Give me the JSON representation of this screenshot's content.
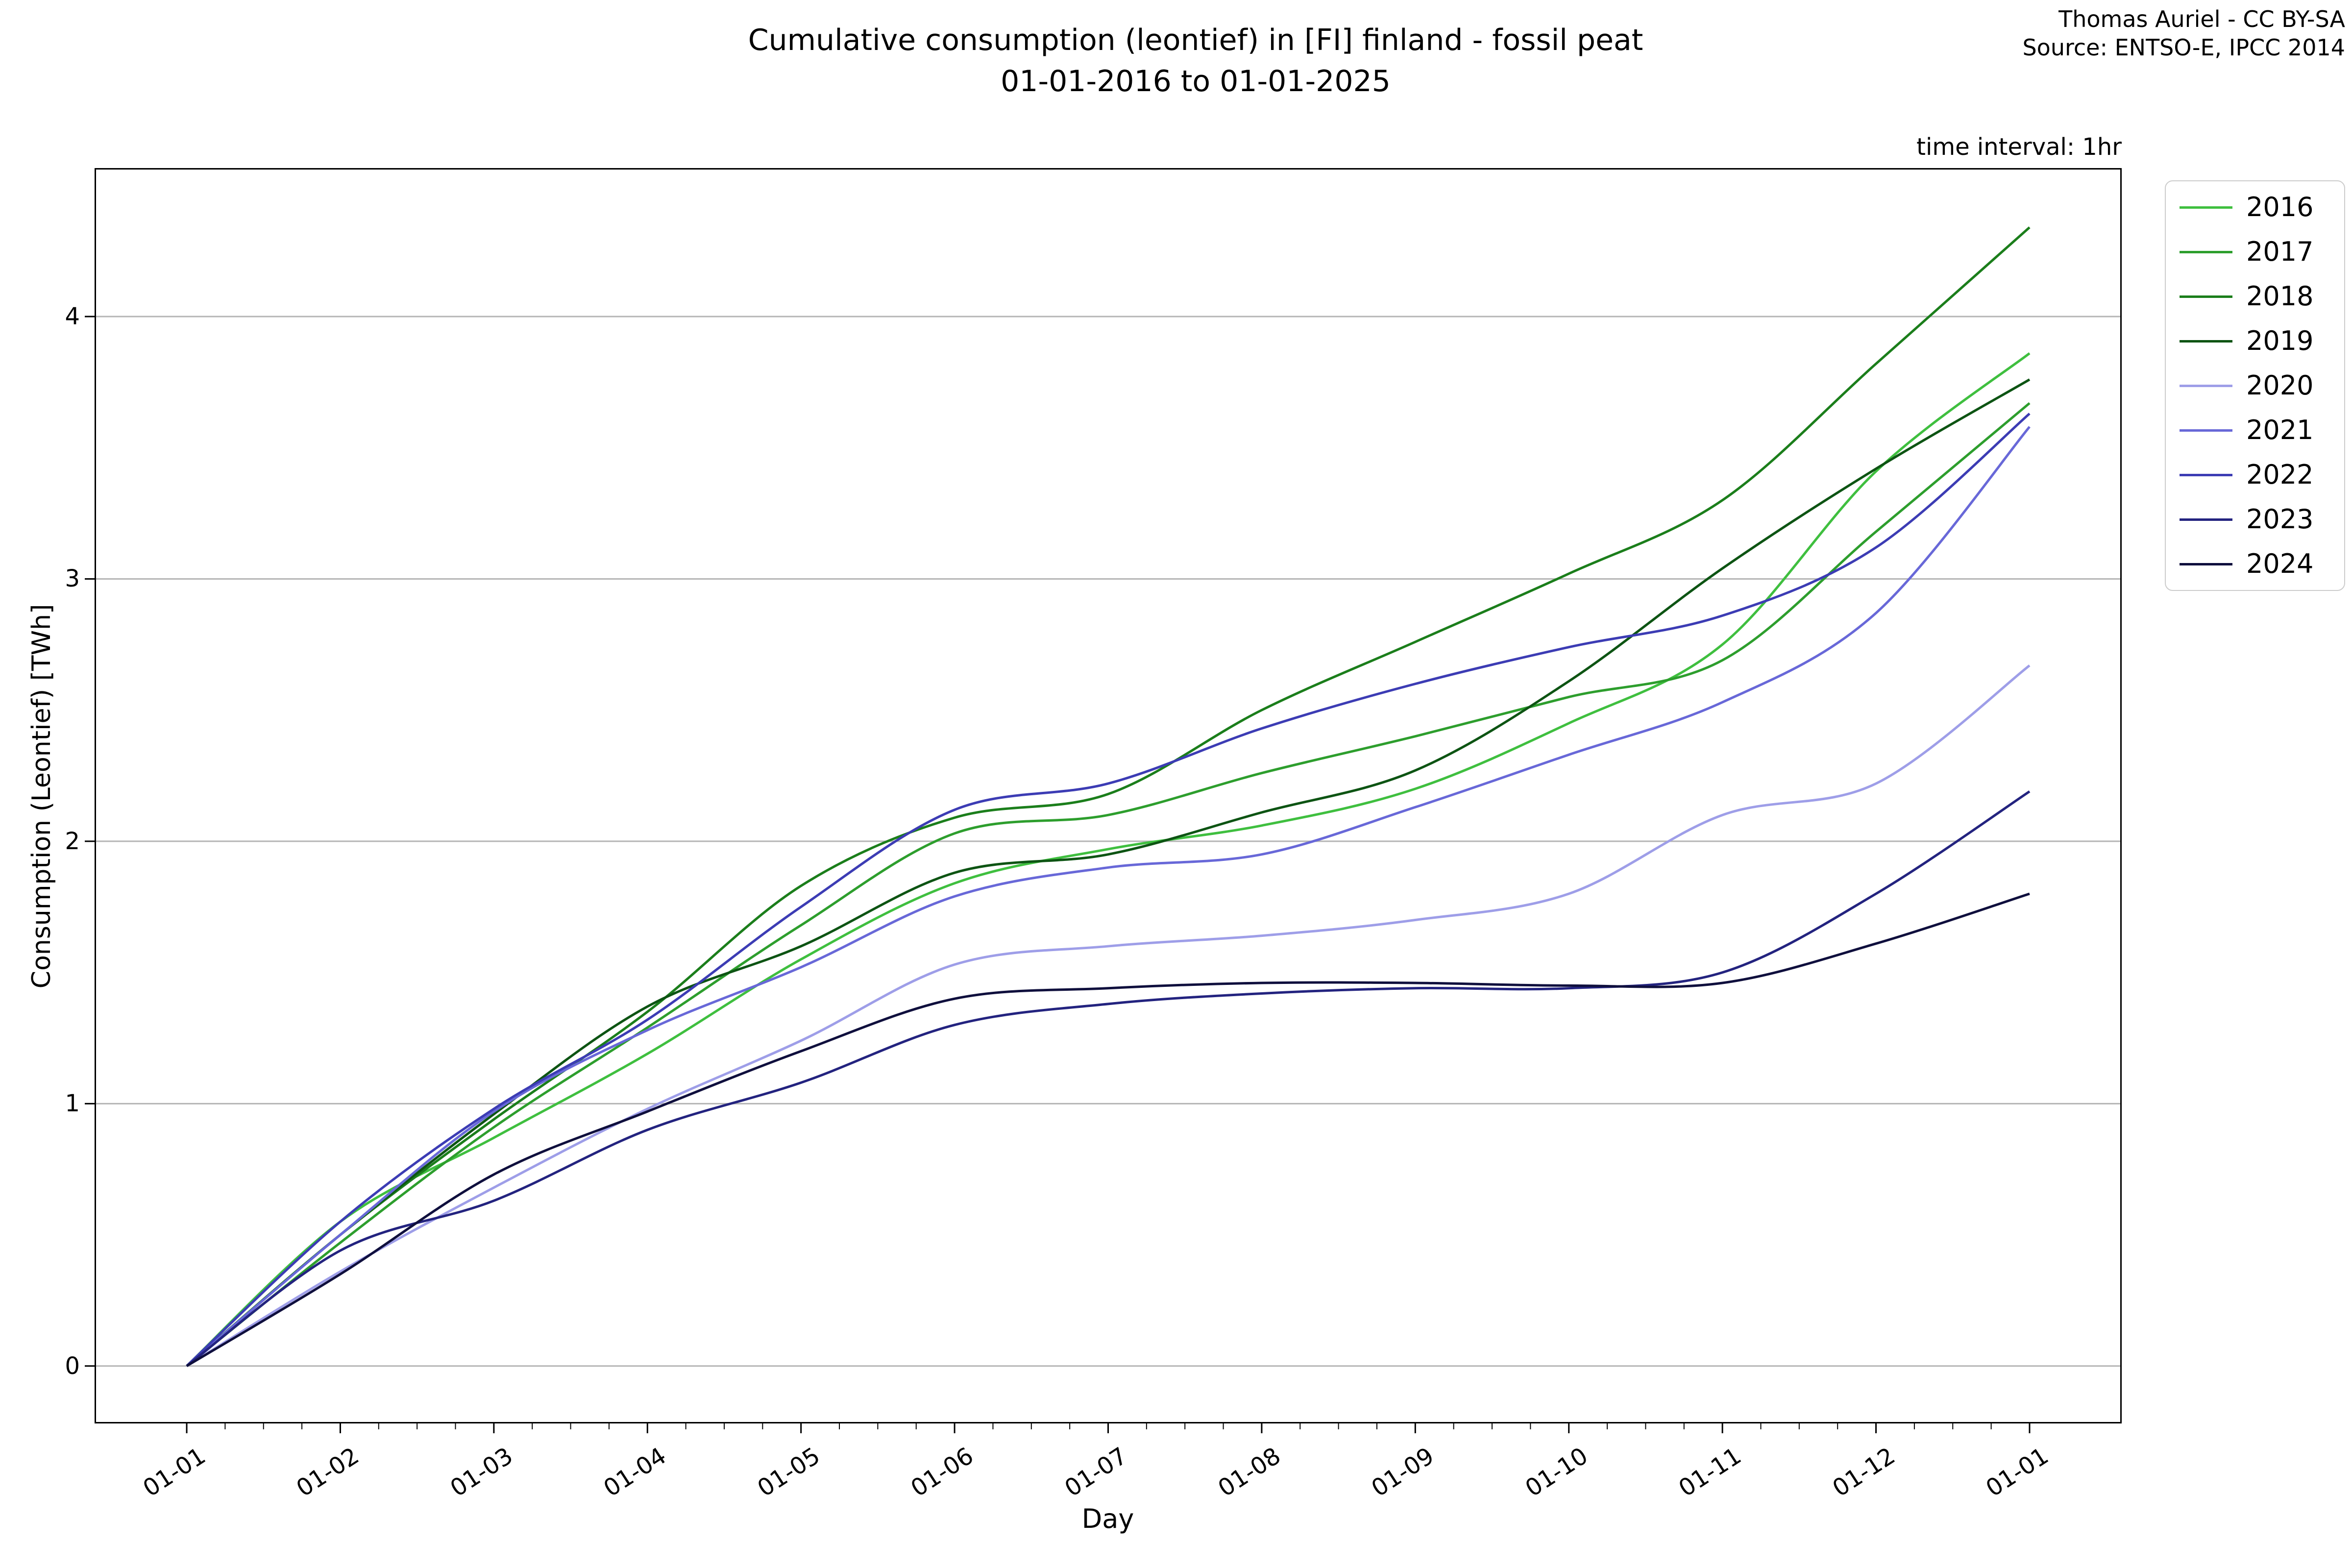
{
  "title": {
    "line1": "Cumulative consumption (leontief) in [FI] finland - fossil peat",
    "line2": "01-01-2016 to 01-01-2025"
  },
  "credit": {
    "line1": "Thomas Auriel - CC BY-SA",
    "line2": "Source: ENTSO-E, IPCC 2014"
  },
  "note": "time interval: 1hr",
  "axes": {
    "xlabel": "Day",
    "ylabel": "Consumption (Leontief) [TWh]",
    "x_tick_labels": [
      "01-01",
      "01-02",
      "01-03",
      "01-04",
      "01-05",
      "01-06",
      "01-07",
      "01-08",
      "01-09",
      "01-10",
      "01-11",
      "01-12",
      "01-01"
    ],
    "y_tick_labels": [
      "0",
      "1",
      "2",
      "3",
      "4"
    ]
  },
  "chart_data": {
    "type": "line",
    "title": "Cumulative consumption (leontief) in [FI] finland - fossil peat 01-01-2016 to 01-01-2025",
    "xlabel": "Day",
    "ylabel": "Consumption (Leontief) [TWh]",
    "x_unit": "month-of-year index (01-01 .. next 01-01)",
    "x": [
      0,
      1,
      2,
      3,
      4,
      5,
      6,
      7,
      8,
      9,
      10,
      11,
      12
    ],
    "x_labels": [
      "01-01",
      "01-02",
      "01-03",
      "01-04",
      "01-05",
      "01-06",
      "01-07",
      "01-08",
      "01-09",
      "01-10",
      "01-11",
      "01-12",
      "01-01"
    ],
    "xlim": [
      -0.6,
      12.6
    ],
    "ylim": [
      -0.219,
      4.566
    ],
    "y_ticks": [
      0,
      1,
      2,
      3,
      4
    ],
    "grid": "horizontal",
    "legend_position": "right",
    "grid_color": "#b5b5b5",
    "spine_color": "#000000",
    "series": [
      {
        "name": "2016",
        "color": "#3fbf3f",
        "values": [
          0,
          0.55,
          0.87,
          1.19,
          1.55,
          1.84,
          1.97,
          2.06,
          2.2,
          2.45,
          2.75,
          3.41,
          3.86
        ]
      },
      {
        "name": "2017",
        "color": "#2d9e2d",
        "values": [
          0,
          0.47,
          0.91,
          1.29,
          1.68,
          2.03,
          2.1,
          2.26,
          2.4,
          2.55,
          2.69,
          3.18,
          3.67
        ]
      },
      {
        "name": "2018",
        "color": "#1b7e1b",
        "values": [
          0,
          0.5,
          0.94,
          1.35,
          1.83,
          2.09,
          2.18,
          2.5,
          2.76,
          3.02,
          3.3,
          3.82,
          4.34
        ]
      },
      {
        "name": "2019",
        "color": "#0d5413",
        "values": [
          0,
          0.5,
          0.96,
          1.37,
          1.6,
          1.88,
          1.95,
          2.11,
          2.27,
          2.61,
          3.04,
          3.42,
          3.76
        ]
      },
      {
        "name": "2020",
        "color": "#9e9ee8",
        "values": [
          0,
          0.36,
          0.68,
          0.98,
          1.24,
          1.53,
          1.6,
          1.64,
          1.7,
          1.8,
          2.1,
          2.22,
          2.67
        ]
      },
      {
        "name": "2021",
        "color": "#6868d8",
        "values": [
          0,
          0.5,
          0.97,
          1.28,
          1.52,
          1.79,
          1.9,
          1.95,
          2.13,
          2.33,
          2.53,
          2.87,
          3.58
        ]
      },
      {
        "name": "2022",
        "color": "#3c3cb4",
        "values": [
          0,
          0.55,
          0.98,
          1.32,
          1.75,
          2.12,
          2.22,
          2.43,
          2.6,
          2.74,
          2.86,
          3.12,
          3.63
        ]
      },
      {
        "name": "2023",
        "color": "#23237f",
        "values": [
          0,
          0.44,
          0.63,
          0.9,
          1.08,
          1.3,
          1.38,
          1.42,
          1.44,
          1.44,
          1.5,
          1.8,
          2.19
        ]
      },
      {
        "name": "2024",
        "color": "#0f0f3d",
        "values": [
          0,
          0.35,
          0.73,
          0.97,
          1.2,
          1.4,
          1.44,
          1.46,
          1.46,
          1.45,
          1.46,
          1.61,
          1.8
        ]
      }
    ]
  }
}
